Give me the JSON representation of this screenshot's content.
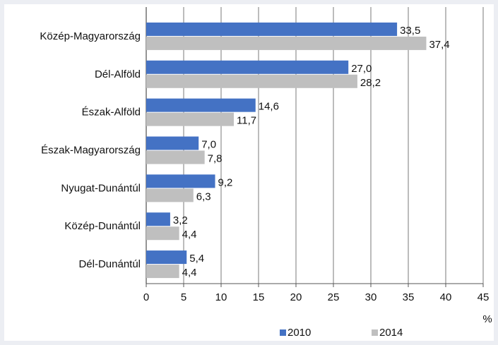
{
  "chart_data": {
    "type": "barh",
    "categories": [
      "Közép-Magyarország",
      "Dél-Alföld",
      "Észak-Alföld",
      "Észak-Magyarország",
      "Nyugat-Dunántúl",
      "Közép-Dunántúl",
      "Dél-Dunántúl"
    ],
    "series": [
      {
        "name": "2010",
        "color": "#4472c4",
        "values": [
          33.5,
          27.0,
          14.6,
          7.0,
          9.2,
          3.2,
          5.4
        ],
        "value_labels": [
          "33,5",
          "27,0",
          "14,6",
          "7,0",
          "9,2",
          "3,2",
          "5,4"
        ]
      },
      {
        "name": "2014",
        "color": "#bfbfbf",
        "values": [
          37.4,
          28.2,
          11.7,
          7.8,
          6.3,
          4.4,
          4.4
        ],
        "value_labels": [
          "37,4",
          "28,2",
          "11,7",
          "7,8",
          "6,3",
          "4,4",
          "4,4"
        ]
      }
    ],
    "xlabel": "%",
    "xlim": [
      0,
      45
    ],
    "xticks": [
      0,
      5,
      10,
      15,
      20,
      25,
      30,
      35,
      40,
      45
    ],
    "grid": true,
    "legend": "bottom"
  }
}
